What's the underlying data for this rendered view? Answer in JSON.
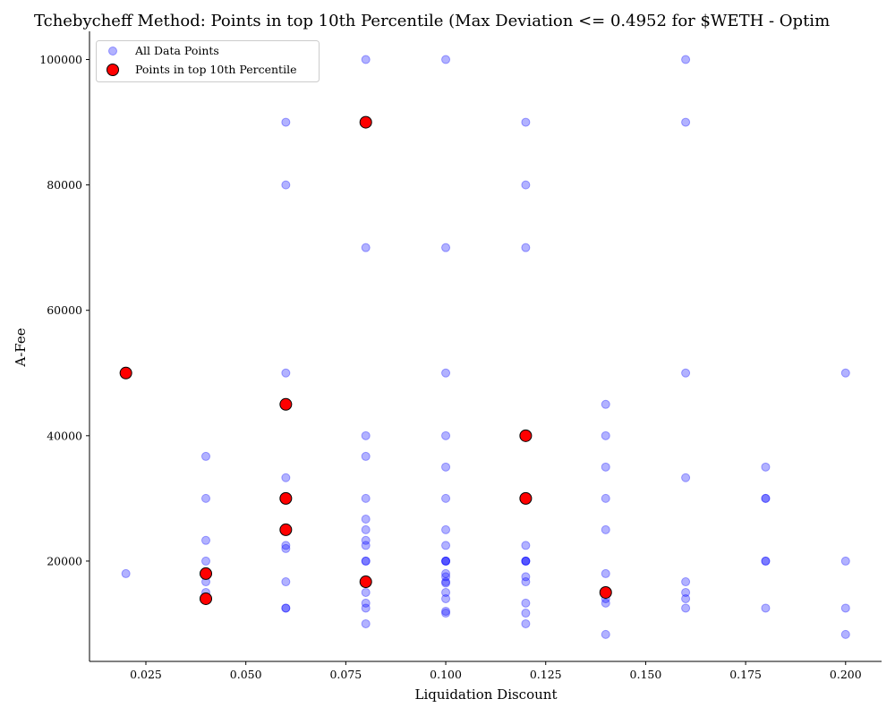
{
  "chart_data": {
    "type": "scatter",
    "title": "Tchebycheff Method: Points in top 10th Percentile (Max Deviation <= 0.4952 for $WETH - Optim",
    "xlabel": "Liquidation Discount",
    "ylabel": "A-Fee",
    "xlim": [
      0.0109,
      0.209
    ],
    "ylim": [
      4000,
      104500
    ],
    "xticks": [
      0.025,
      0.05,
      0.075,
      0.1,
      0.125,
      0.15,
      0.175,
      0.2
    ],
    "xtick_labels": [
      "0.025",
      "0.050",
      "0.075",
      "0.100",
      "0.125",
      "0.150",
      "0.175",
      "0.200"
    ],
    "yticks": [
      20000,
      40000,
      60000,
      80000,
      100000
    ],
    "ytick_labels": [
      "20000",
      "40000",
      "60000",
      "80000",
      "100000"
    ],
    "grid": false,
    "legend": {
      "placement": "top-left",
      "entries": [
        "All Data Points",
        "Points in top 10th Percentile"
      ]
    },
    "series": [
      {
        "name": "All Data Points",
        "color": "#0000ff",
        "x": [
          0.02,
          0.02,
          0.04,
          0.04,
          0.04,
          0.04,
          0.04,
          0.04,
          0.04,
          0.04,
          0.06,
          0.06,
          0.06,
          0.06,
          0.06,
          0.06,
          0.06,
          0.06,
          0.06,
          0.06,
          0.06,
          0.06,
          0.08,
          0.08,
          0.08,
          0.08,
          0.08,
          0.08,
          0.08,
          0.08,
          0.08,
          0.08,
          0.08,
          0.08,
          0.08,
          0.08,
          0.08,
          0.08,
          0.08,
          0.1,
          0.1,
          0.1,
          0.1,
          0.1,
          0.1,
          0.1,
          0.1,
          0.1,
          0.1,
          0.1,
          0.1,
          0.1,
          0.1,
          0.1,
          0.1,
          0.1,
          0.1,
          0.1,
          0.12,
          0.12,
          0.12,
          0.12,
          0.12,
          0.12,
          0.12,
          0.12,
          0.12,
          0.12,
          0.12,
          0.12,
          0.12,
          0.12,
          0.12,
          0.14,
          0.14,
          0.14,
          0.14,
          0.14,
          0.14,
          0.14,
          0.14,
          0.14,
          0.14,
          0.14,
          0.16,
          0.16,
          0.16,
          0.16,
          0.16,
          0.16,
          0.16,
          0.16,
          0.18,
          0.18,
          0.18,
          0.18,
          0.18,
          0.18,
          0.2,
          0.2,
          0.2,
          0.2
        ],
        "y": [
          50000,
          18000,
          36700,
          30000,
          23300,
          20000,
          18000,
          16700,
          15000,
          14000,
          90000,
          80000,
          50000,
          45000,
          33300,
          30000,
          25000,
          22500,
          22000,
          16700,
          12500,
          12500,
          100000,
          90000,
          70000,
          40000,
          36700,
          30000,
          26700,
          25000,
          23300,
          22500,
          20000,
          20000,
          16700,
          15000,
          13300,
          12500,
          10000,
          100000,
          70000,
          50000,
          40000,
          35000,
          30000,
          25000,
          22500,
          20000,
          20000,
          18000,
          17500,
          16700,
          16500,
          15000,
          14000,
          12000,
          11700,
          20000,
          90000,
          80000,
          70000,
          40000,
          30000,
          22500,
          20000,
          20000,
          17500,
          16700,
          13300,
          11700,
          10000,
          20000,
          30000,
          45000,
          40000,
          35000,
          30000,
          25000,
          18000,
          15000,
          14000,
          13300,
          8300,
          15000,
          100000,
          90000,
          50000,
          33300,
          16700,
          15000,
          14000,
          12500,
          35000,
          30000,
          30000,
          20000,
          20000,
          12500,
          50000,
          20000,
          12500,
          8300
        ]
      },
      {
        "name": "Points in top 10th Percentile",
        "color": "#ff0000",
        "x": [
          0.02,
          0.04,
          0.04,
          0.06,
          0.06,
          0.06,
          0.08,
          0.08,
          0.12,
          0.12,
          0.14
        ],
        "y": [
          50000,
          18000,
          14000,
          45000,
          30000,
          25000,
          90000,
          16700,
          40000,
          30000,
          15000
        ]
      }
    ]
  }
}
